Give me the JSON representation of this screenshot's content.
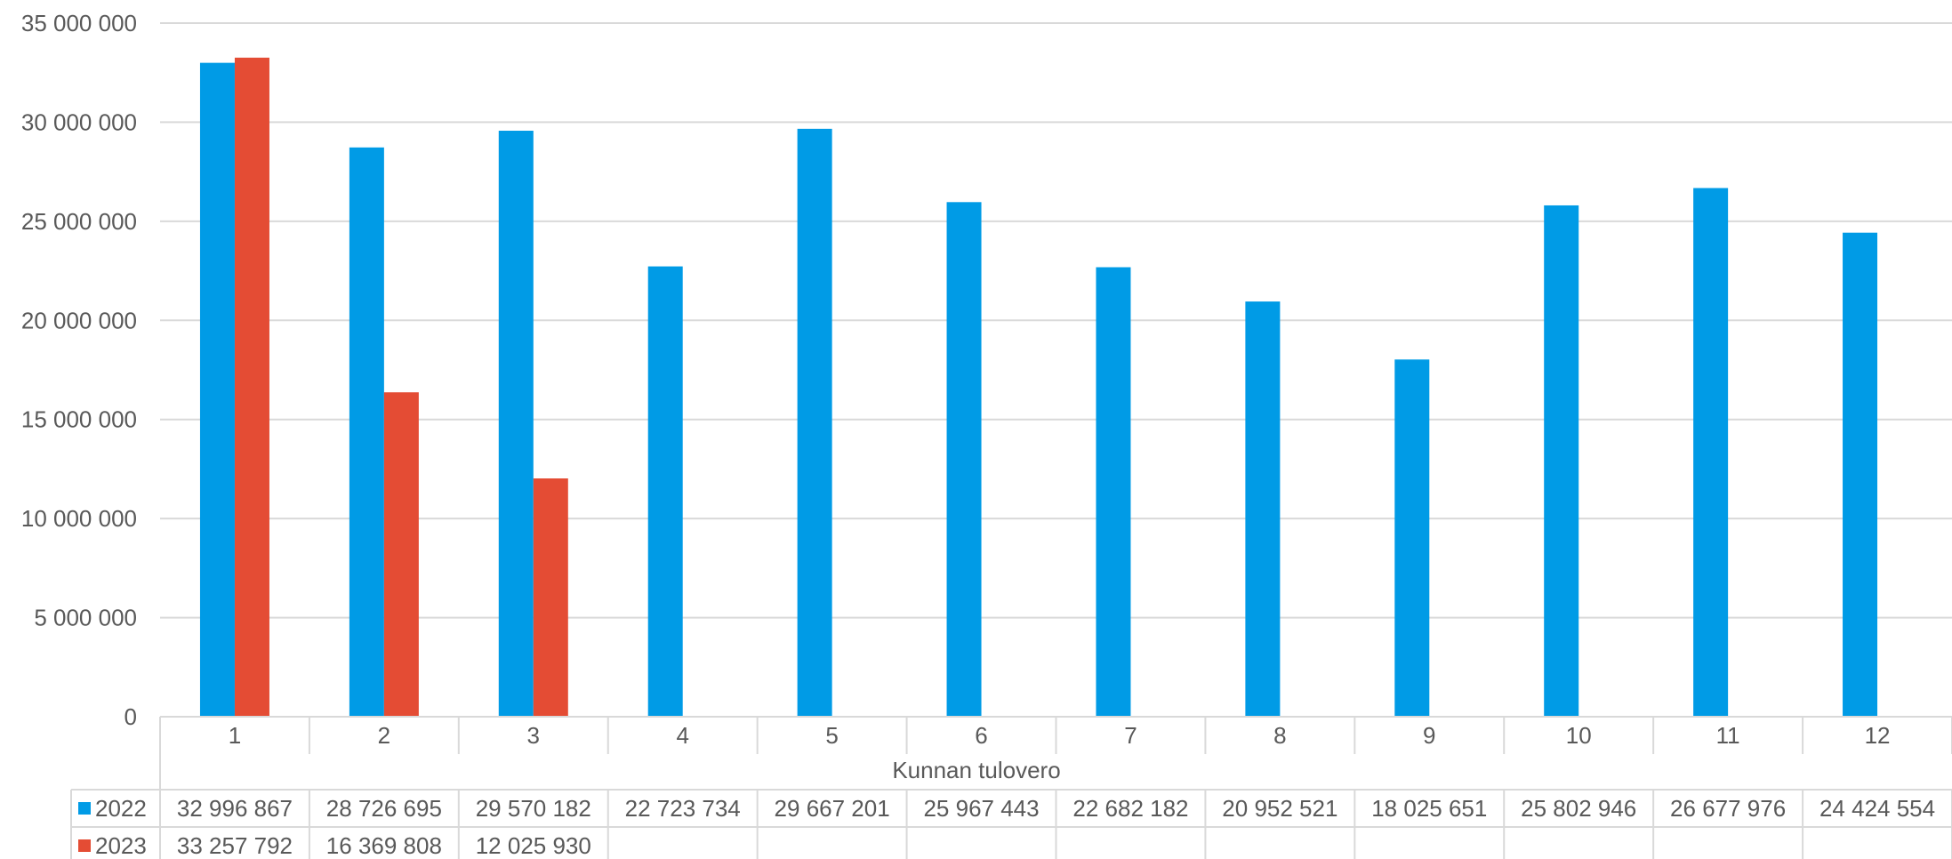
{
  "chart_data": {
    "type": "bar",
    "title": "",
    "xlabel": "Kunnan tulovero",
    "ylabel": "",
    "ylim": [
      0,
      35000000
    ],
    "yticks": [
      0,
      5000000,
      10000000,
      15000000,
      20000000,
      25000000,
      30000000,
      35000000
    ],
    "ytick_labels": [
      "0",
      "5 000 000",
      "10 000 000",
      "15 000 000",
      "20 000 000",
      "25 000 000",
      "30 000 000",
      "35 000 000"
    ],
    "grid": true,
    "legend": "data-table",
    "categories": [
      "1",
      "2",
      "3",
      "4",
      "5",
      "6",
      "7",
      "8",
      "9",
      "10",
      "11",
      "12"
    ],
    "series": [
      {
        "name": "2022",
        "color": "#009be6",
        "values": [
          32996867,
          28726695,
          29570182,
          22723734,
          29667201,
          25967443,
          22682182,
          20952521,
          18025651,
          25802946,
          26677976,
          24424554
        ],
        "labels": [
          "32 996 867",
          "28 726 695",
          "29 570 182",
          "22 723 734",
          "29 667 201",
          "25 967 443",
          "22 682 182",
          "20 952 521",
          "18 025 651",
          "25 802 946",
          "26 677 976",
          "24 424 554"
        ]
      },
      {
        "name": "2023",
        "color": "#e44c34",
        "values": [
          33257792,
          16369808,
          12025930,
          null,
          null,
          null,
          null,
          null,
          null,
          null,
          null,
          null
        ],
        "labels": [
          "33 257 792",
          "16 369 808",
          "12 025 930",
          "",
          "",
          "",
          "",
          "",
          "",
          "",
          "",
          ""
        ]
      }
    ]
  }
}
